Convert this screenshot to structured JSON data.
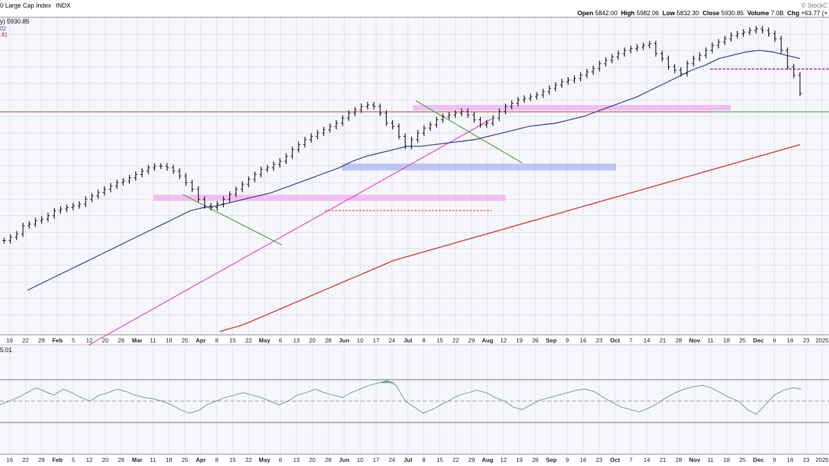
{
  "header": {
    "title": "0 Large Cap Index",
    "exchange": "INDX",
    "watermark": "© StockC",
    "ohlc": {
      "open_label": "Open",
      "open": "5842.00",
      "high_label": "High",
      "high": "5982.06",
      "low_label": "Low",
      "low": "5832.30",
      "close_label": "Close",
      "close": "5930.85",
      "volume_label": "Volume",
      "volume": "7.0B",
      "chg_label": "Chg",
      "chg": "+63.77 (+"
    }
  },
  "legend": {
    "line1": "y) 5930.85",
    "line2": "02",
    "line3": ".81"
  },
  "rsi_panel": {
    "label": "5.01"
  },
  "colors": {
    "price": "#111111",
    "ma50": "#3a3a8c",
    "ma200": "#d42020",
    "trendline": "#ee44cc",
    "downtrend": "#4a9a3a",
    "resistance_red": "#b03030",
    "resistance_green": "#2f8a2f",
    "zone_pink": "#f2b8f0",
    "zone_blue": "#b8c0f4",
    "dashed_red": "#d42020",
    "dashed_purple": "#a020b0",
    "rsi_line": "#7788aa",
    "rsi_fill": "#5a9a88",
    "grid": "#dde1ea"
  },
  "chart_data": {
    "type": "line",
    "series": [
      {
        "values": [
          5050,
          5070,
          5090,
          5140,
          5150,
          5170,
          5180,
          5200,
          5230,
          5240,
          5250,
          5260,
          5270,
          5300,
          5320,
          5340,
          5360,
          5380,
          5400,
          5410,
          5430,
          5450,
          5470,
          5490,
          5500,
          5500,
          5490,
          5470,
          5440,
          5400,
          5360,
          5300,
          5260,
          5250,
          5270,
          5300,
          5330,
          5360,
          5390,
          5420,
          5450,
          5480,
          5490,
          5510,
          5530,
          5560,
          5600,
          5630,
          5660,
          5680,
          5700,
          5720,
          5740,
          5760,
          5790,
          5820,
          5840,
          5860,
          5870,
          5860,
          5820,
          5760,
          5740,
          5680,
          5620,
          5660,
          5700,
          5730,
          5750,
          5780,
          5800,
          5810,
          5820,
          5830,
          5810,
          5780,
          5750,
          5760,
          5790,
          5830,
          5860,
          5880,
          5900,
          5910,
          5920,
          5930,
          5950,
          5970,
          5990,
          6010,
          6020,
          6030,
          6050,
          6070,
          6090,
          6120,
          6140,
          6160,
          6180,
          6200,
          6210,
          6220,
          6230,
          6240,
          6180,
          6150,
          6100,
          6080,
          6060,
          6120,
          6150,
          6170,
          6200,
          6230,
          6250,
          6270,
          6290,
          6300,
          6310,
          6320,
          6330,
          6320,
          6300,
          6270,
          6200,
          6100,
          6050,
          5940
        ]
      },
      {
        "name": "",
        "values": [
          4750,
          4790,
          4830,
          4870,
          4910,
          4950,
          4990,
          5030,
          5070,
          5110,
          5150,
          5190,
          5230,
          5250,
          5260,
          5280,
          5300,
          5320,
          5340,
          5370,
          5400,
          5430,
          5460,
          5490,
          5530,
          5560,
          5580,
          5600,
          5620,
          5620,
          5630,
          5640,
          5650,
          5660,
          5680,
          5700,
          5720,
          5740,
          5750,
          5760,
          5780,
          5800,
          5830,
          5860,
          5890,
          5920,
          5960,
          6000,
          6040,
          6080,
          6110,
          6150,
          6170,
          6190,
          6200,
          6190,
          6170,
          6150
        ]
      },
      {
        "name": "",
        "values": [
          4500,
          4520,
          4540,
          4570,
          4600,
          4630,
          4660,
          4690,
          4720,
          4750,
          4780,
          4810,
          4840,
          4870,
          4900,
          4930,
          4950,
          4970,
          4990,
          5010,
          5030,
          5050,
          5070,
          5090,
          5110,
          5130,
          5150,
          5170,
          5190,
          5210,
          5230,
          5250,
          5270,
          5290,
          5310,
          5330,
          5350,
          5370,
          5390,
          5410,
          5430,
          5450,
          5470,
          5490,
          5510,
          5530,
          5550,
          5570,
          5590,
          5610,
          5630
        ]
      }
    ],
    "rsi": [
      52,
      55,
      58,
      62,
      66,
      63,
      60,
      65,
      62,
      58,
      55,
      60,
      62,
      65,
      63,
      60,
      58,
      57,
      55,
      52,
      48,
      45,
      47,
      52,
      55,
      58,
      60,
      62,
      60,
      58,
      55,
      52,
      55,
      60,
      62,
      65,
      62,
      60,
      58,
      62,
      65,
      68,
      70,
      72,
      68,
      55,
      50,
      45,
      48,
      52,
      56,
      60,
      62,
      64,
      62,
      58,
      55,
      50,
      48,
      52,
      56,
      58,
      60,
      62,
      64,
      65,
      63,
      58,
      54,
      50,
      48,
      46,
      49,
      53,
      58,
      62,
      65,
      67,
      68,
      66,
      62,
      58,
      55,
      48,
      44,
      52,
      60,
      64,
      66,
      65
    ]
  },
  "x_axis": {
    "labels": [
      "16",
      "22",
      "29",
      "Feb",
      "5",
      "12",
      "20",
      "26",
      "Mar",
      "11",
      "18",
      "25",
      "Apr",
      "8",
      "15",
      "22",
      "May",
      "6",
      "13",
      "20",
      "28",
      "Jun",
      "10",
      "17",
      "24",
      "Jul",
      "8",
      "15",
      "22",
      "29",
      "Aug",
      "12",
      "19",
      "26",
      "Sep",
      "9",
      "16",
      "23",
      "Oct",
      "7",
      "14",
      "21",
      "28",
      "Nov",
      "11",
      "18",
      "25",
      "Dec",
      "9",
      "16",
      "23",
      "2025"
    ]
  }
}
